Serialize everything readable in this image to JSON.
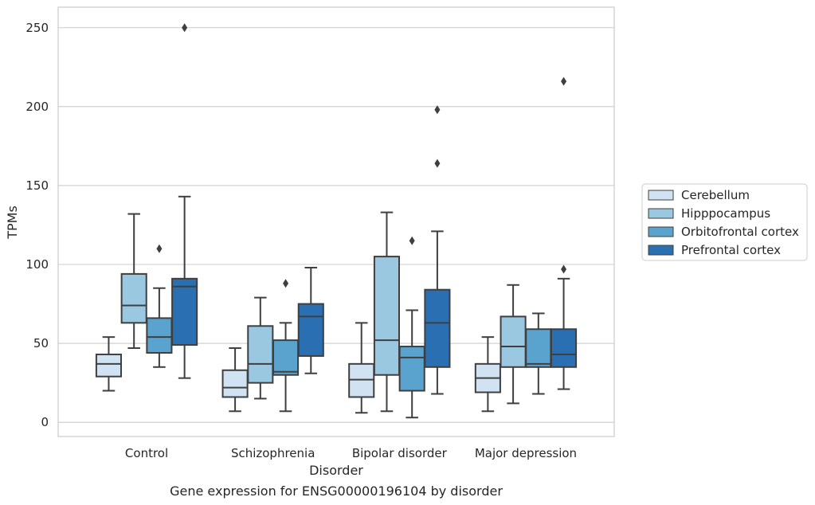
{
  "chart_data": {
    "type": "box",
    "title": "",
    "caption": "Gene expression for ENSG00000196104 by disorder",
    "xlabel": "Disorder",
    "ylabel": "TPMs",
    "ylim": [
      -9,
      263
    ],
    "yticks": [
      0,
      50,
      100,
      150,
      200,
      250
    ],
    "grid": "horizontal",
    "legend_position": "right",
    "categories": [
      "Control",
      "Schizophrenia",
      "Bipolar disorder",
      "Major depression"
    ],
    "series": [
      {
        "name": "Cerebellum",
        "color": "#d1e2f3",
        "boxes": [
          {
            "whisker_low": 20,
            "q1": 29,
            "median": 37,
            "q3": 43,
            "whisker_high": 54,
            "outliers": []
          },
          {
            "whisker_low": 7,
            "q1": 16,
            "median": 22,
            "q3": 33,
            "whisker_high": 47,
            "outliers": []
          },
          {
            "whisker_low": 6,
            "q1": 16,
            "median": 27,
            "q3": 37,
            "whisker_high": 63,
            "outliers": []
          },
          {
            "whisker_low": 7,
            "q1": 19,
            "median": 28,
            "q3": 37,
            "whisker_high": 54,
            "outliers": []
          }
        ]
      },
      {
        "name": "Hipppocampus",
        "color": "#9ac8e0",
        "boxes": [
          {
            "whisker_low": 47,
            "q1": 63,
            "median": 74,
            "q3": 94,
            "whisker_high": 132,
            "outliers": []
          },
          {
            "whisker_low": 15,
            "q1": 25,
            "median": 37,
            "q3": 61,
            "whisker_high": 79,
            "outliers": []
          },
          {
            "whisker_low": 7,
            "q1": 30,
            "median": 52,
            "q3": 105,
            "whisker_high": 133,
            "outliers": []
          },
          {
            "whisker_low": 12,
            "q1": 35,
            "median": 48,
            "q3": 67,
            "whisker_high": 87,
            "outliers": []
          }
        ]
      },
      {
        "name": "Orbitofrontal cortex",
        "color": "#5ba3cf",
        "boxes": [
          {
            "whisker_low": 35,
            "q1": 44,
            "median": 54,
            "q3": 66,
            "whisker_high": 85,
            "outliers": [
              110
            ]
          },
          {
            "whisker_low": 7,
            "q1": 30,
            "median": 32,
            "q3": 52,
            "whisker_high": 63,
            "outliers": [
              88
            ]
          },
          {
            "whisker_low": 3,
            "q1": 20,
            "median": 41,
            "q3": 48,
            "whisker_high": 71,
            "outliers": [
              115
            ]
          },
          {
            "whisker_low": 18,
            "q1": 35,
            "median": 37,
            "q3": 59,
            "whisker_high": 69,
            "outliers": []
          }
        ]
      },
      {
        "name": "Prefrontal cortex",
        "color": "#2a6fb2",
        "boxes": [
          {
            "whisker_low": 28,
            "q1": 49,
            "median": 86,
            "q3": 91,
            "whisker_high": 143,
            "outliers": [
              250
            ]
          },
          {
            "whisker_low": 31,
            "q1": 42,
            "median": 67,
            "q3": 75,
            "whisker_high": 98,
            "outliers": []
          },
          {
            "whisker_low": 18,
            "q1": 35,
            "median": 63,
            "q3": 84,
            "whisker_high": 121,
            "outliers": [
              164,
              198
            ]
          },
          {
            "whisker_low": 21,
            "q1": 35,
            "median": 43,
            "q3": 59,
            "whisker_high": 91,
            "outliers": [
              97,
              216
            ]
          }
        ]
      }
    ]
  }
}
